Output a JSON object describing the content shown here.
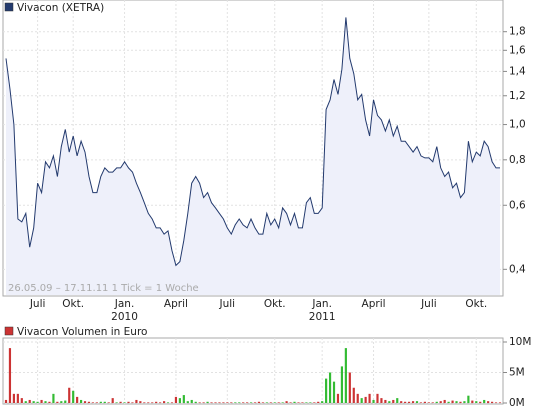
{
  "chart_data": [
    {
      "type": "line",
      "log_scale": true,
      "grid": true,
      "note": "26.05.09 – 17.11.11   1 Tick = 1 Woche",
      "categories": [
        null,
        null,
        null,
        null,
        null,
        null,
        null,
        null,
        "Juli",
        null,
        null,
        null,
        null,
        null,
        null,
        null,
        null,
        "Okt.",
        null,
        null,
        null,
        null,
        null,
        null,
        null,
        null,
        null,
        null,
        null,
        null,
        "Jan.\n2010",
        null,
        null,
        null,
        null,
        null,
        null,
        null,
        null,
        null,
        null,
        null,
        null,
        "April",
        null,
        null,
        null,
        null,
        null,
        null,
        null,
        null,
        null,
        null,
        null,
        null,
        "Juli",
        null,
        null,
        null,
        null,
        null,
        null,
        null,
        null,
        null,
        null,
        null,
        "Okt.",
        null,
        null,
        null,
        null,
        null,
        null,
        null,
        null,
        null,
        null,
        null,
        "Jan.\n2011",
        null,
        null,
        null,
        null,
        null,
        null,
        null,
        null,
        null,
        null,
        null,
        null,
        "April",
        null,
        null,
        null,
        null,
        null,
        null,
        null,
        null,
        null,
        null,
        null,
        null,
        null,
        "Juli",
        null,
        null,
        null,
        null,
        null,
        null,
        null,
        null,
        null,
        null,
        null,
        "Okt.",
        null,
        null,
        null,
        null,
        null,
        null
      ],
      "series": [
        {
          "name": "Vivacon (XETRA)",
          "color": "#233a6e",
          "fill": "#eef0fa",
          "values": [
            1.52,
            1.25,
            1.0,
            0.55,
            0.54,
            0.57,
            0.46,
            0.52,
            0.69,
            0.65,
            0.79,
            0.76,
            0.82,
            0.72,
            0.87,
            0.97,
            0.84,
            0.93,
            0.82,
            0.9,
            0.84,
            0.72,
            0.65,
            0.65,
            0.72,
            0.76,
            0.74,
            0.74,
            0.76,
            0.76,
            0.79,
            0.76,
            0.74,
            0.69,
            0.65,
            0.61,
            0.57,
            0.55,
            0.52,
            0.52,
            0.5,
            0.51,
            0.45,
            0.41,
            0.42,
            0.48,
            0.57,
            0.69,
            0.72,
            0.69,
            0.63,
            0.65,
            0.61,
            0.59,
            0.57,
            0.55,
            0.52,
            0.5,
            0.53,
            0.55,
            0.53,
            0.52,
            0.55,
            0.52,
            0.5,
            0.5,
            0.57,
            0.53,
            0.55,
            0.52,
            0.59,
            0.57,
            0.53,
            0.57,
            0.52,
            0.52,
            0.61,
            0.63,
            0.57,
            0.57,
            0.59,
            1.1,
            1.17,
            1.33,
            1.21,
            1.42,
            1.97,
            1.52,
            1.38,
            1.17,
            1.21,
            1.03,
            0.93,
            1.17,
            1.06,
            1.03,
            0.96,
            1.03,
            0.93,
            0.99,
            0.9,
            0.9,
            0.87,
            0.84,
            0.87,
            0.82,
            0.81,
            0.81,
            0.79,
            0.87,
            0.76,
            0.72,
            0.74,
            0.67,
            0.69,
            0.63,
            0.65,
            0.9,
            0.79,
            0.84,
            0.82,
            0.9,
            0.87,
            0.79,
            0.76,
            0.76
          ]
        }
      ],
      "ylim": [
        0.34,
        2.2
      ],
      "yticks": [
        {
          "value": 0.4,
          "label": "0,4"
        },
        {
          "value": 0.6,
          "label": "0,6"
        },
        {
          "value": 0.8,
          "label": "0,8"
        },
        {
          "value": 1.0,
          "label": "1,0"
        },
        {
          "value": 1.2,
          "label": "1,2"
        },
        {
          "value": 1.4,
          "label": "1,4"
        },
        {
          "value": 1.6,
          "label": "1,6"
        },
        {
          "value": 1.8,
          "label": "1,8"
        }
      ]
    },
    {
      "type": "bar",
      "grid": true,
      "up_color": "#33bb33",
      "down_color": "#cc3333",
      "series": [
        {
          "name": "Vivacon Volumen in Euro",
          "color": "#cc3333",
          "values": [
            500000,
            9000000,
            1500000,
            1500000,
            800000,
            300000,
            500000,
            300000,
            200000,
            500000,
            300000,
            200000,
            1500000,
            200000,
            300000,
            400000,
            2500000,
            2000000,
            1000000,
            500000,
            300000,
            200000,
            100000,
            100000,
            200000,
            200000,
            100000,
            800000,
            100000,
            200000,
            100000,
            200000,
            100000,
            500000,
            300000,
            100000,
            100000,
            100000,
            200000,
            100000,
            300000,
            100000,
            100000,
            1000000,
            800000,
            1300000,
            300000,
            500000,
            200000,
            100000,
            100000,
            200000,
            100000,
            100000,
            100000,
            100000,
            100000,
            100000,
            100000,
            100000,
            100000,
            100000,
            100000,
            100000,
            200000,
            100000,
            100000,
            100000,
            100000,
            100000,
            100000,
            300000,
            100000,
            200000,
            100000,
            100000,
            100000,
            100000,
            100000,
            200000,
            300000,
            4000000,
            5000000,
            3500000,
            1500000,
            6000000,
            9000000,
            5000000,
            2500000,
            1500000,
            800000,
            1000000,
            1500000,
            500000,
            1500000,
            800000,
            500000,
            300000,
            500000,
            800000,
            300000,
            200000,
            200000,
            300000,
            300000,
            100000,
            200000,
            100000,
            100000,
            200000,
            300000,
            500000,
            200000,
            400000,
            300000,
            200000,
            300000,
            1200000,
            400000,
            300000,
            200000,
            500000,
            300000,
            200000,
            100000,
            100000
          ]
        }
      ],
      "ylim": [
        0,
        10000000
      ],
      "yticks": [
        {
          "value": 0,
          "label": "0M"
        },
        {
          "value": 5000000,
          "label": "5M"
        },
        {
          "value": 10000000,
          "label": "10M"
        }
      ]
    }
  ]
}
